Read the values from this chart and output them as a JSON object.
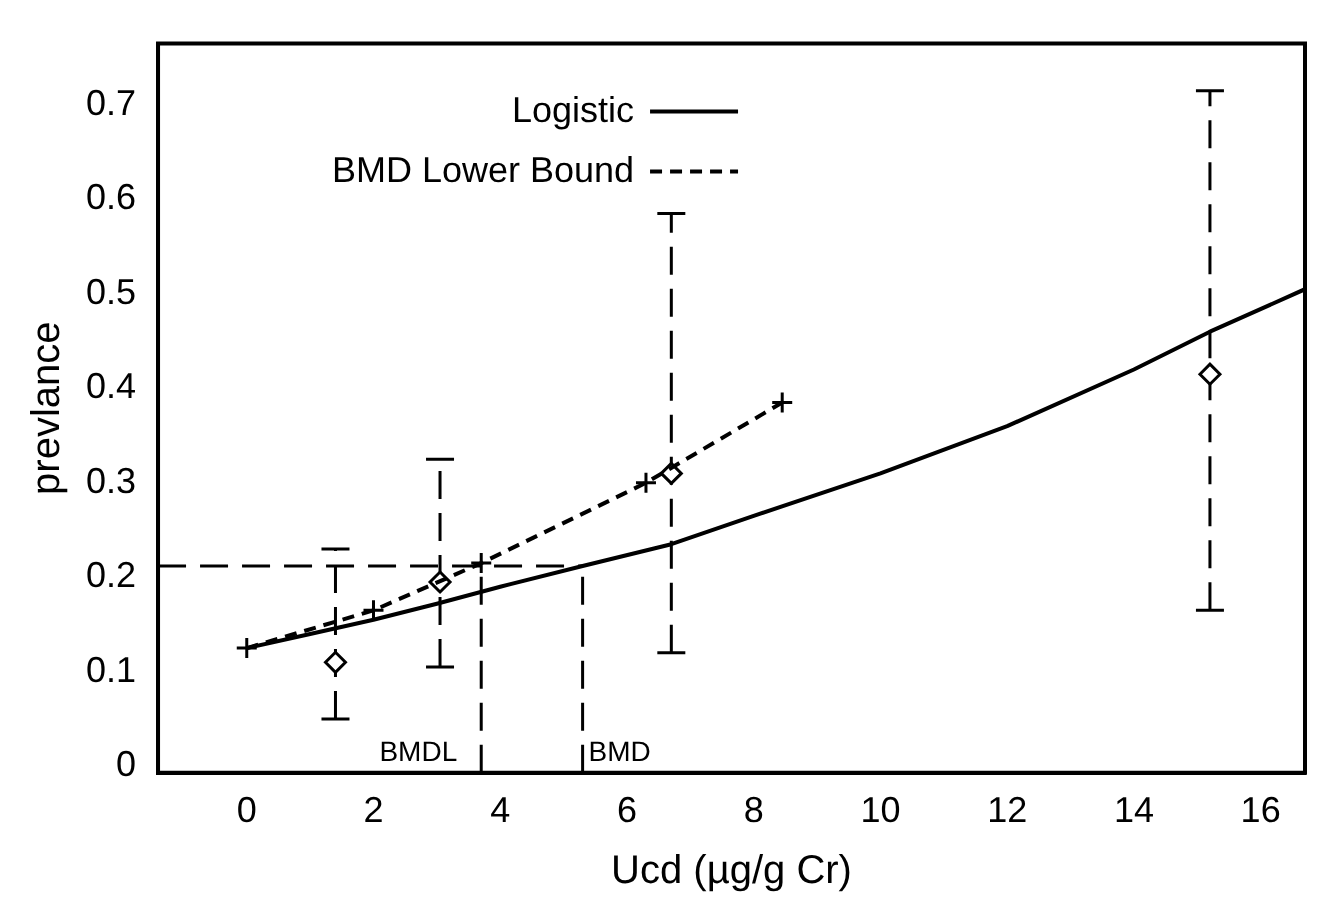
{
  "chart_data": {
    "type": "scatter",
    "xlabel": "Ucd (µg/g Cr)",
    "ylabel": "prevlance",
    "xlim": [
      -1.4,
      16.7
    ],
    "xticks": [
      0,
      2,
      4,
      6,
      8,
      10,
      12,
      14,
      16
    ],
    "ylim": [
      -0.007,
      0.765
    ],
    "yticks": [
      0,
      0.1,
      0.2,
      0.3,
      0.4,
      0.5,
      0.6,
      0.7
    ],
    "grid": false,
    "legend": "top left",
    "series": [
      {
        "name": "Logistic",
        "type": "line",
        "color": "#000000",
        "marker": "none",
        "line_style": "solid",
        "x": [
          0,
          1,
          2,
          3,
          4,
          5.3,
          6.7,
          8,
          10,
          12,
          14,
          15.2,
          16.7
        ],
        "values": [
          0.125,
          0.14,
          0.155,
          0.172,
          0.19,
          0.212,
          0.235,
          0.265,
          0.31,
          0.36,
          0.42,
          0.46,
          0.505
        ]
      },
      {
        "name": "BMD Lower Bound",
        "type": "line",
        "color": "#000000",
        "marker": "cross",
        "line_style": "dashed",
        "x": [
          0,
          2,
          3.7,
          6.3,
          8.45
        ],
        "values": [
          0.125,
          0.165,
          0.215,
          0.3,
          0.385
        ]
      },
      {
        "color": "#000000",
        "marker": "diamond",
        "x": [
          1.4,
          3.05,
          6.7,
          15.2
        ],
        "values": [
          0.11,
          0.195,
          0.31,
          0.415
        ],
        "errors": [
          [
            0.05,
            0.23
          ],
          [
            0.105,
            0.325
          ],
          [
            0.12,
            0.585
          ],
          [
            0.165,
            0.715
          ]
        ]
      }
    ],
    "ref_lines": [
      {
        "axis": "y",
        "value": 0.212,
        "line_style": "dashed"
      },
      {
        "axis": "x",
        "value": 3.7,
        "label": "BMDL",
        "line_style": "dashed"
      },
      {
        "axis": "x",
        "value": 5.3,
        "label": "BMD",
        "line_style": "dashed"
      }
    ]
  }
}
